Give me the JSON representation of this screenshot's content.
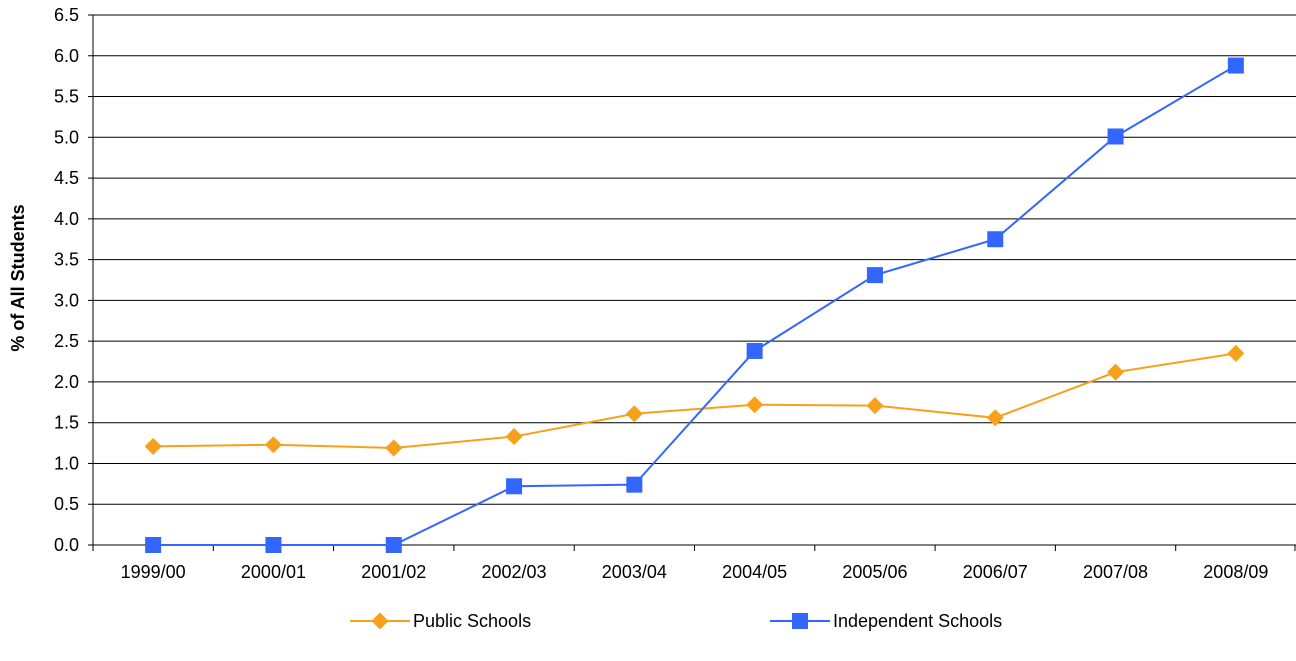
{
  "chart_data": {
    "type": "line",
    "title": "",
    "xlabel": "",
    "ylabel": "% of All Students",
    "ylim": [
      0,
      6.5
    ],
    "yticks": [
      "0.0",
      "0.5",
      "1.0",
      "1.5",
      "2.0",
      "2.5",
      "3.0",
      "3.5",
      "4.0",
      "4.5",
      "5.0",
      "5.5",
      "6.0",
      "6.5"
    ],
    "categories": [
      "1999/00",
      "2000/01",
      "2001/02",
      "2002/03",
      "2003/04",
      "2004/05",
      "2005/06",
      "2006/07",
      "2007/08",
      "2008/09"
    ],
    "grid": "horizontal",
    "legend_position": "bottom",
    "series": [
      {
        "name": "Public Schools",
        "color": "#f7a11a",
        "marker": "diamond",
        "values": [
          1.21,
          1.23,
          1.19,
          1.33,
          1.61,
          1.72,
          1.71,
          1.56,
          2.12,
          2.35
        ]
      },
      {
        "name": "Independent Schools",
        "color": "#3366ff",
        "marker": "square",
        "values": [
          0.0,
          0.0,
          0.0,
          0.72,
          0.74,
          2.38,
          3.31,
          3.75,
          5.01,
          5.88
        ]
      }
    ]
  }
}
